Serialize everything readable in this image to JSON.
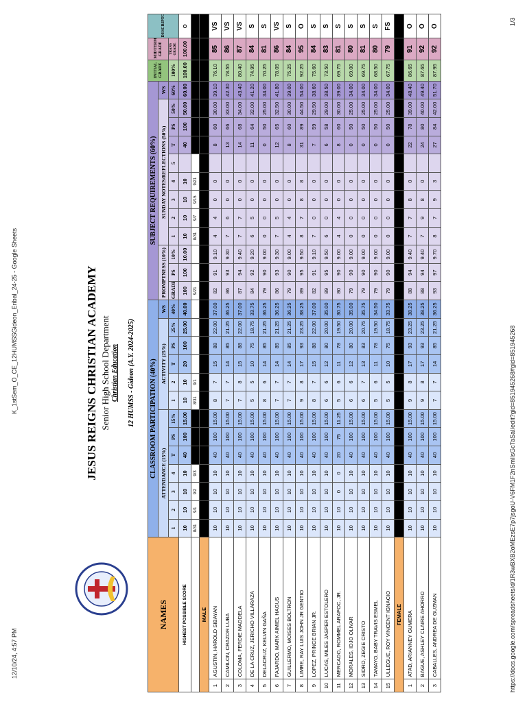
{
  "header": {
    "datetime": "12/10/24, 4:57 PM",
    "doc_title": "K_1stSem_O_CE_12HUMSSGideon_Eribal_24-25 - Google Sheets"
  },
  "school": {
    "name": "JESUS REIGNS CHRISTIAN ACADEMY",
    "department": "Senior High School Department",
    "subject": "Christian Education",
    "section": "12 HUMSS - Gideon (A.Y. 2024-2025)"
  },
  "table": {
    "names_header": "NAMES",
    "groups": [
      "CLASSROOM PARTICIPATION (40%)",
      "SUBJECT REQUIREMENTS (60%)"
    ],
    "initial_header": "INITIAL GRADE",
    "midterm_header": "MIDTERM GRADE",
    "descriptors_header": "DESCRIPTORS",
    "subgroups": [
      "ATTENDANCE (15%)",
      "ACTIVITY (25%)",
      "WS",
      "PROMPTNESS (10%)",
      "SUNDAY NOTES/REFLECTIONS (50%)",
      "WS"
    ],
    "columns": [
      "1",
      "2",
      "3",
      "4",
      "T",
      "PS",
      "15%",
      "1",
      "2",
      "T",
      "PS",
      "25%",
      "40%",
      "GRADE",
      "PS",
      "10%",
      "1",
      "2",
      "3",
      "4",
      "5",
      "T",
      "PS",
      "50%",
      "60%",
      "100%",
      "TRANS GRADE"
    ],
    "highest_label": "HIGHEST POSSIBLE SCORE",
    "highest": [
      "10",
      "10",
      "10",
      "10",
      "40",
      "100",
      "15.00",
      "10",
      "10",
      "20",
      "100",
      "25.00",
      "40.00",
      "100",
      "100",
      "10.00",
      "10",
      "10",
      "10",
      "10",
      null,
      "40",
      "100",
      "50.00",
      "60.00",
      "100.00",
      "100.00",
      "O"
    ],
    "dates": [
      "8/31",
      "9/1",
      "9/2",
      "9/3",
      null,
      null,
      null,
      "8/31",
      "9/1",
      null,
      null,
      null,
      null,
      "9/21",
      null,
      null,
      "8/31",
      "9/7",
      "9/15",
      "9/21",
      null,
      null,
      null,
      null,
      null,
      null,
      null,
      null
    ],
    "sections": [
      {
        "label": "MALE",
        "rows": [
          {
            "no": "1",
            "name": "AGUSTIN, HAROLD SIBAYAN",
            "cells": [
              "10",
              "10",
              "10",
              "10",
              "40",
              "100",
              "15.00",
              "8",
              "7",
              "15",
              "88",
              "22.00",
              "37.00",
              "82",
              "91",
              "9.10",
              "4",
              "4",
              "0",
              "0",
              null,
              "8",
              "60",
              "30.00",
              "39.10",
              "76.10",
              "85",
              "VS"
            ]
          },
          {
            "no": "2",
            "name": "CAMILON, CRAZOR LUBA",
            "cells": [
              "10",
              "10",
              "10",
              "10",
              "40",
              "100",
              "15.00",
              "7",
              "7",
              "14",
              "85",
              "21.25",
              "36.25",
              "86",
              "93",
              "9.30",
              "7",
              "6",
              "0",
              "0",
              null,
              "13",
              "66",
              "33.00",
              "42.30",
              "78.55",
              "86",
              "VS"
            ]
          },
          {
            "no": "3",
            "name": "COLOMA, FERDIE MADDELA",
            "cells": [
              "10",
              "10",
              "10",
              "10",
              "40",
              "100",
              "15.00",
              "7",
              "8",
              "15",
              "88",
              "22.00",
              "37.00",
              "87",
              "94",
              "9.40",
              "7",
              "7",
              "0",
              "0",
              null,
              "14",
              "68",
              "34.00",
              "43.40",
              "80.40",
              "87",
              "VS"
            ]
          },
          {
            "no": "4",
            "name": "DE LA CRUZ, JERICHO VILLARAZA",
            "cells": [
              "10",
              "10",
              "10",
              "10",
              "40",
              "100",
              "15.00",
              "5",
              "5",
              "10",
              "75",
              "18.75",
              "33.75",
              "84",
              "92",
              "9.20",
              "6",
              "5",
              "0",
              "0",
              null,
              "11",
              "64",
              "32.00",
              "41.20",
              "74.95",
              "84",
              "S"
            ]
          },
          {
            "no": "5",
            "name": "DELACRUZ, KELVIN GAÑA",
            "cells": [
              "10",
              "10",
              "10",
              "10",
              "40",
              "100",
              "15.00",
              "8",
              "6",
              "14",
              "85",
              "21.25",
              "36.25",
              "79",
              "90",
              "9.00",
              "0",
              "0",
              "0",
              "0",
              null,
              "0",
              "50",
              "25.00",
              "34.00",
              "70.25",
              "81",
              "S"
            ]
          },
          {
            "no": "6",
            "name": "FAJARDO, MARK AIMIEL HAGUS",
            "cells": [
              "10",
              "10",
              "10",
              "10",
              "40",
              "100",
              "15.00",
              "7",
              "7",
              "14",
              "85",
              "21.25",
              "36.25",
              "86",
              "93",
              "9.30",
              "7",
              "5",
              "0",
              "0",
              null,
              "12",
              "65",
              "32.50",
              "41.80",
              "78.05",
              "86",
              "VS"
            ]
          },
          {
            "no": "7",
            "name": "GUILLERMO, MOISES BOLTRON",
            "cells": [
              "10",
              "10",
              "10",
              "10",
              "40",
              "100",
              "15.00",
              "7",
              "7",
              "14",
              "85",
              "21.25",
              "36.25",
              "79",
              "90",
              "9.00",
              "4",
              "4",
              "0",
              "0",
              null,
              "8",
              "60",
              "30.00",
              "39.00",
              "75.25",
              "84",
              "S"
            ]
          },
          {
            "no": "8",
            "name": "LIMRE, RAY LUIS JOHN JR GENTIO",
            "cells": [
              "10",
              "10",
              "10",
              "10",
              "40",
              "100",
              "15.00",
              "9",
              "8",
              "17",
              "93",
              "23.25",
              "38.25",
              "89",
              "95",
              "9.50",
              "8",
              "7",
              "8",
              "8",
              null,
              "31",
              "89",
              "44.50",
              "54.00",
              "92.25",
              "95",
              "O"
            ]
          },
          {
            "no": "9",
            "name": "LOPEZ, PRINCE BRIAN JR.",
            "cells": [
              "10",
              "10",
              "10",
              "10",
              "40",
              "100",
              "15.00",
              "8",
              "7",
              "15",
              "88",
              "22.00",
              "37.00",
              "82",
              "91",
              "9.10",
              "7",
              "0",
              "0",
              "0",
              null,
              "7",
              "59",
              "29.50",
              "38.60",
              "75.60",
              "84",
              "S"
            ]
          },
          {
            "no": "10",
            "name": "LUCAS, MILES JASPER ESTOLERO",
            "cells": [
              "10",
              "10",
              "10",
              "10",
              "40",
              "100",
              "15.00",
              "6",
              "6",
              "12",
              "80",
              "20.00",
              "35.00",
              "89",
              "95",
              "9.50",
              "6",
              "0",
              "0",
              "0",
              null,
              "6",
              "58",
              "29.00",
              "38.50",
              "73.50",
              "83",
              "S"
            ]
          },
          {
            "no": "11",
            "name": "MERCADO, ROMMEL ARAPOC, JR.",
            "cells": [
              "10",
              "10",
              "0",
              "0",
              "20",
              "75",
              "11.25",
              "5",
              "6",
              "11",
              "78",
              "19.50",
              "30.75",
              "80",
              "90",
              "9.00",
              "4",
              "4",
              "0",
              "0",
              null,
              "8",
              "60",
              "30.00",
              "39.00",
              "69.75",
              "81",
              "S"
            ]
          },
          {
            "no": "12",
            "name": "MORALES, IDJO OLIVAR",
            "cells": [
              "10",
              "10",
              "10",
              "10",
              "40",
              "100",
              "15.00",
              "6",
              "6",
              "12",
              "80",
              "20.00",
              "35.00",
              "79",
              "90",
              "9.00",
              "0",
              "0",
              "0",
              "0",
              null,
              "0",
              "50",
              "25.00",
              "34.00",
              "69.00",
              "80",
              "S"
            ]
          },
          {
            "no": "13",
            "name": "SIDRO, ZEGIE CRISTO",
            "cells": [
              "10",
              "10",
              "10",
              "10",
              "40",
              "100",
              "15.00",
              "6",
              "7",
              "13",
              "83",
              "20.75",
              "35.75",
              "79",
              "90",
              "9.00",
              "0",
              "0",
              "0",
              "0",
              null,
              "0",
              "50",
              "25.00",
              "34.00",
              "69.75",
              "81",
              "S"
            ]
          },
          {
            "no": "14",
            "name": "TAMAYO, BABY TRAVIS ESMEL",
            "cells": [
              "10",
              "10",
              "10",
              "10",
              "40",
              "100",
              "15.00",
              "5",
              "6",
              "11",
              "78",
              "19.50",
              "34.50",
              "79",
              "90",
              "9.00",
              "0",
              "0",
              "0",
              "0",
              null,
              "0",
              "50",
              "25.00",
              "34.00",
              "68.50",
              "80",
              "S"
            ]
          },
          {
            "no": "15",
            "name": "ULLEGUE, ROY VINCENT IGNACIO",
            "cells": [
              "10",
              "10",
              "10",
              "10",
              "40",
              "100",
              "15.00",
              "5",
              "5",
              "10",
              "75",
              "18.75",
              "33.75",
              "79",
              "90",
              "9.00",
              "0",
              "0",
              "0",
              "0",
              null,
              "0",
              "50",
              "25.00",
              "34.00",
              "67.75",
              "79",
              "FS"
            ]
          }
        ]
      },
      {
        "label": "FEMALE",
        "rows": [
          {
            "no": "1",
            "name": "ATAD, ARIANNEY GUMERA",
            "cells": [
              "10",
              "10",
              "10",
              "10",
              "40",
              "100",
              "15.00",
              "9",
              "8",
              "17",
              "93",
              "23.25",
              "38.25",
              "88",
              "94",
              "9.40",
              "7",
              "7",
              "8",
              "0",
              null,
              "22",
              "78",
              "39.00",
              "48.40",
              "86.65",
              "91",
              "O"
            ]
          },
          {
            "no": "2",
            "name": "BAGUE, ASHLEY CLAIRE AHORRO",
            "cells": [
              "10",
              "10",
              "10",
              "10",
              "40",
              "100",
              "15.00",
              "9",
              "8",
              "17",
              "93",
              "23.25",
              "38.25",
              "88",
              "94",
              "9.40",
              "7",
              "9",
              "8",
              "0",
              null,
              "24",
              "80",
              "40.00",
              "49.40",
              "87.65",
              "92",
              "O"
            ]
          },
          {
            "no": "3",
            "name": "CABALLES, ANDREA DE GUZMAN",
            "cells": [
              "10",
              "10",
              "10",
              "10",
              "40",
              "100",
              "15.00",
              "7",
              "7",
              "14",
              "85",
              "21.25",
              "36.25",
              "93",
              "97",
              "9.70",
              "8",
              "7",
              "9",
              "3",
              null,
              "27",
              "84",
              "42.00",
              "51.70",
              "87.95",
              "92",
              "O"
            ]
          }
        ]
      }
    ]
  },
  "footer": {
    "url": "https://docs.google.com/spreadsheets/d/1R3wBXB2oMEzsE7p7jsgoU-V6FM1F2nSmlIsGcTaSaI/edit?gid=851945268#gid=851945268",
    "page": "1/3"
  }
}
